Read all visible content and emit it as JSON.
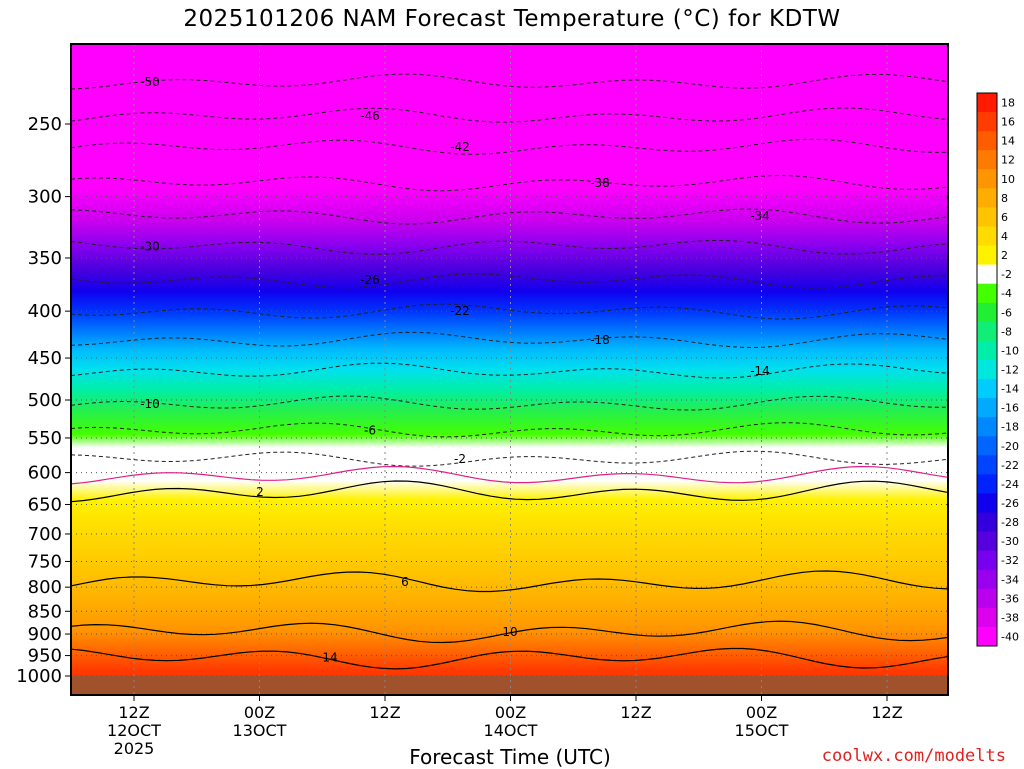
{
  "chart_data": {
    "type": "heatmap",
    "title": "2025101206 NAM Forecast Temperature (°C) for KDTW",
    "xlabel": "Forecast Time (UTC)",
    "credit": "coolwx.com/modelts",
    "y_axis": {
      "scale": "log-pressure",
      "ylim": [
        1000,
        200
      ],
      "ticks": [
        "250",
        "300",
        "350",
        "400",
        "450",
        "500",
        "550",
        "600",
        "650",
        "700",
        "750",
        "800",
        "850",
        "900",
        "950",
        "1000"
      ]
    },
    "x_axis": {
      "ticks": [
        {
          "line1": "12Z",
          "line2": "12OCT",
          "line3": "2025",
          "hour": 6
        },
        {
          "line1": "00Z",
          "line2": "13OCT",
          "line3": "",
          "hour": 18
        },
        {
          "line1": "12Z",
          "line2": "",
          "line3": "",
          "hour": 30
        },
        {
          "line1": "00Z",
          "line2": "14OCT",
          "line3": "",
          "hour": 42
        },
        {
          "line1": "12Z",
          "line2": "",
          "line3": "",
          "hour": 54
        },
        {
          "line1": "00Z",
          "line2": "15OCT",
          "line3": "",
          "hour": 66
        },
        {
          "line1": "12Z",
          "line2": "",
          "line3": "",
          "hour": 78
        }
      ],
      "xlim": [
        0,
        84
      ]
    },
    "colorbar": {
      "labels": [
        "18",
        "16",
        "14",
        "12",
        "10",
        "8",
        "6",
        "4",
        "2",
        "-2",
        "-4",
        "-6",
        "-8",
        "-10",
        "-12",
        "-14",
        "-16",
        "-18",
        "-20",
        "-22",
        "-24",
        "-26",
        "-28",
        "-30",
        "-32",
        "-34",
        "-36",
        "-38",
        "-40"
      ],
      "colors": [
        "#ff1a00",
        "#ff3d00",
        "#ff5c00",
        "#ff7a00",
        "#ff9500",
        "#ffad00",
        "#ffc400",
        "#ffdb00",
        "#fff200",
        "#ffffff",
        "#44ff00",
        "#22ee33",
        "#11ee77",
        "#00eeaa",
        "#00e8dd",
        "#00ccff",
        "#00aaff",
        "#0088ff",
        "#0066ff",
        "#0044ff",
        "#0022ff",
        "#1100ee",
        "#3300dd",
        "#5500dd",
        "#7700ee",
        "#9900ee",
        "#bb00ee",
        "#dd00ee",
        "#ff00ff"
      ]
    },
    "contours": {
      "dashed": [
        {
          "value": "-50",
          "label": "-50"
        },
        {
          "value": "-46",
          "label": "-46"
        },
        {
          "value": "-42",
          "label": "-42"
        },
        {
          "value": "-38",
          "label": "-38"
        },
        {
          "value": "-34",
          "label": "-34"
        },
        {
          "value": "-30",
          "label": "-30"
        },
        {
          "value": "-26",
          "label": "-26"
        },
        {
          "value": "-22",
          "label": "-22"
        },
        {
          "value": "-18",
          "label": "-18"
        },
        {
          "value": "-14",
          "label": "-14"
        },
        {
          "value": "-10",
          "label": "-10"
        },
        {
          "value": "-6",
          "label": "-6"
        },
        {
          "value": "-2",
          "label": "-2"
        }
      ],
      "solid": [
        {
          "value": "2",
          "label": "2"
        },
        {
          "value": "6",
          "label": "6"
        },
        {
          "value": "10",
          "label": "10"
        },
        {
          "value": "14",
          "label": "14"
        }
      ],
      "freezing_line_color": "#e0208a"
    },
    "ground_color": "#a0522d",
    "grid": true
  }
}
